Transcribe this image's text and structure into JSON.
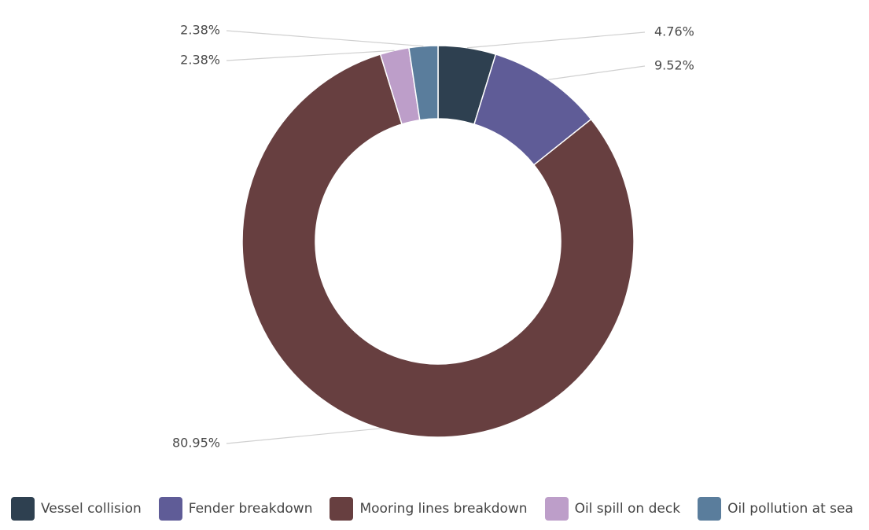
{
  "chart_data": {
    "type": "pie",
    "variant": "donut",
    "title": "",
    "legend_position": "bottom",
    "series": [
      {
        "name": "Vessel collision",
        "value": 4.76,
        "label": "4.76%",
        "color": "#2e4050"
      },
      {
        "name": "Fender breakdown",
        "value": 9.52,
        "label": "9.52%",
        "color": "#5f5c97"
      },
      {
        "name": "Mooring lines breakdown",
        "value": 80.95,
        "label": "80.95%",
        "color": "#673f40"
      },
      {
        "name": "Oil spill on deck",
        "value": 2.38,
        "label": "2.38%",
        "color": "#bd9ec9"
      },
      {
        "name": "Oil pollution at sea",
        "value": 2.38,
        "label": "2.38%",
        "color": "#5a7d9c"
      }
    ]
  }
}
